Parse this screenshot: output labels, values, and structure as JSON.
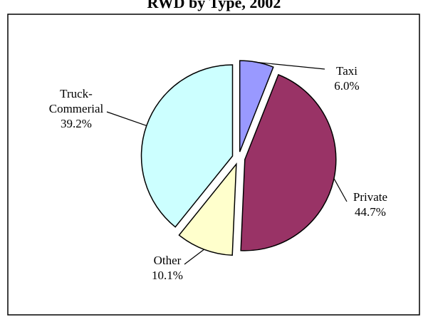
{
  "chart_data": {
    "type": "pie",
    "title": "RWD by Type, 2002",
    "categories": [
      "Taxi",
      "Private",
      "Other",
      "Truck-Commerial"
    ],
    "values": [
      6.0,
      44.7,
      10.1,
      39.2
    ],
    "value_labels": [
      "6.0%",
      "44.7%",
      "10.1%",
      "39.2%"
    ],
    "colors": [
      "#9999ff",
      "#993366",
      "#ffffcc",
      "#ccffff"
    ]
  }
}
